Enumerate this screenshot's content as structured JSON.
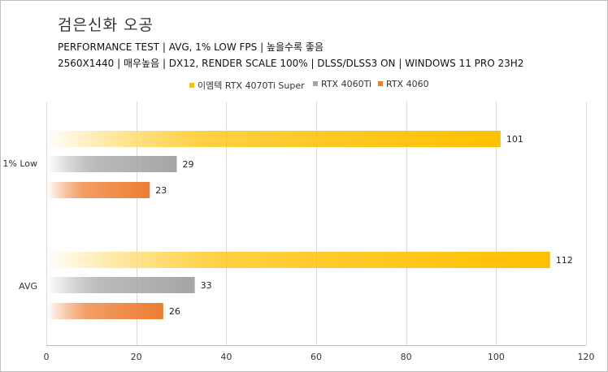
{
  "title": "검은신화 오공",
  "subtitle_line1": "PERFORMANCE TEST | AVG, 1% LOW FPS | 높을수록 좋음",
  "subtitle_line2": "2560X1440 | 매우높음 | DX12, RENDER SCALE 100% | DLSS/DLSS3 ON  | WINDOWS 11 PRO 23H2",
  "colors": {
    "series1": "#FFC000",
    "series2": "#A5A5A5",
    "series3": "#ED7D31",
    "grid": "#d9d9d9"
  },
  "legend": [
    {
      "label": "이엠텍 RTX 4070Ti Super"
    },
    {
      "label": "RTX 4060Ti"
    },
    {
      "label": "RTX 4060"
    }
  ],
  "chart_data": {
    "type": "bar",
    "orientation": "horizontal",
    "categories": [
      "1% Low",
      "AVG"
    ],
    "series": [
      {
        "name": "이엠텍 RTX 4070Ti Super",
        "values": [
          101,
          112
        ]
      },
      {
        "name": "RTX 4060Ti",
        "values": [
          29,
          33
        ]
      },
      {
        "name": "RTX 4060",
        "values": [
          23,
          26
        ]
      }
    ],
    "xlim": [
      0,
      120
    ],
    "xticks": [
      0,
      20,
      40,
      60,
      80,
      100,
      120
    ],
    "grid": true,
    "legend_position": "top"
  }
}
